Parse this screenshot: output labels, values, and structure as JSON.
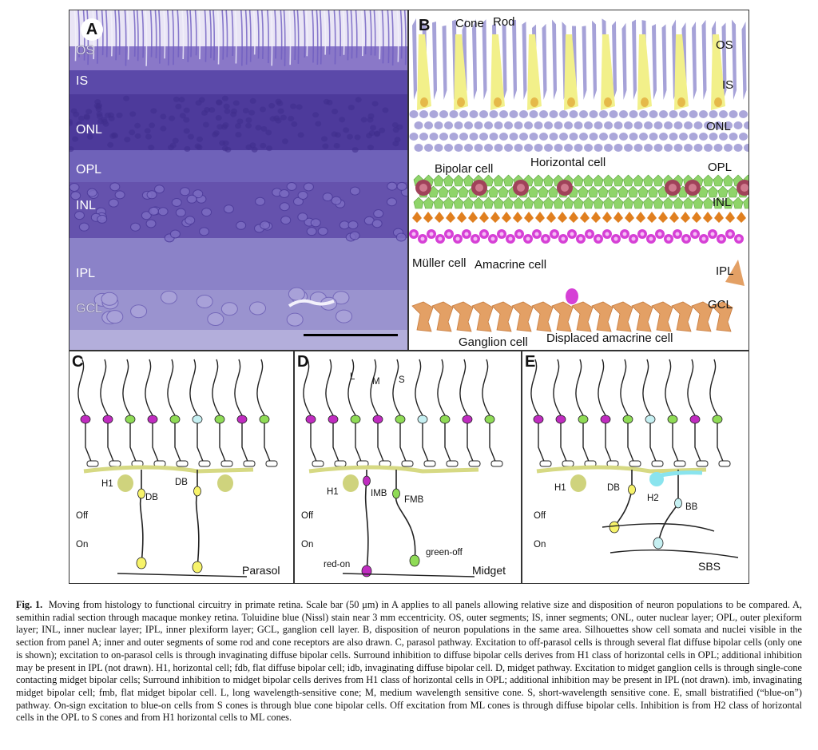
{
  "panels": {
    "a": {
      "letter": "A",
      "layers": [
        "OS",
        "IS",
        "ONL",
        "OPL",
        "INL",
        "IPL",
        "GCL"
      ]
    },
    "b": {
      "letter": "B",
      "layers": [
        "OS",
        "IS",
        "ONL",
        "OPL",
        "INL",
        "IPL",
        "GCL"
      ],
      "cells": {
        "cone": "Cone",
        "rod": "Rod",
        "bipolar": "Bipolar cell",
        "horizontal": "Horizontal cell",
        "muller": "Müller cell",
        "amacrine": "Amacrine cell",
        "ganglion": "Ganglion cell",
        "displaced": "Displaced amacrine cell"
      },
      "colors": {
        "rod": "#9c98d4",
        "cone": "#f2f08a",
        "bipolar": "#8fd46a",
        "horizontal": "#a0425a",
        "amacrine": "#d640d6",
        "muller": "#e07f1f",
        "ganglion": "#e3a065"
      }
    },
    "c": {
      "letter": "C",
      "h1": "H1",
      "db_left": "DB",
      "db_right": "DB",
      "off": "Off",
      "on": "On",
      "pathway": "Parasol"
    },
    "d": {
      "letter": "D",
      "l": "L",
      "m": "M",
      "s": "S",
      "h1": "H1",
      "imb": "IMB",
      "fmb": "FMB",
      "off": "Off",
      "on": "On",
      "red_on": "red-on",
      "green_off": "green-off",
      "pathway": "Midget"
    },
    "e": {
      "letter": "E",
      "h1": "H1",
      "db": "DB",
      "h2": "H2",
      "bb": "BB",
      "off": "Off",
      "on": "On",
      "pathway": "SBS"
    }
  },
  "caption": {
    "label": "Fig. 1.",
    "text": "Moving from histology to functional circuitry in primate retina. Scale bar (50 μm) in A applies to all panels allowing relative size and disposition of neuron populations to be compared. A, semithin radial section through macaque monkey retina. Toluidine blue (Nissl) stain near 3 mm eccentricity. OS, outer segments; IS, inner segments; ONL, outer nuclear layer; OPL, outer plexiform layer; INL, inner nuclear layer; IPL, inner plexiform layer; GCL, ganglion cell layer. B, disposition of neuron populations in the same area. Silhouettes show cell somata and nuclei visible in the section from panel A; inner and outer segments of some rod and cone receptors are also drawn. C, parasol pathway. Excitation to off-parasol cells is through several flat diffuse bipolar cells (only one is shown); excitation to on-parasol cells is through invaginating diffuse bipolar cells. Surround inhibition to diffuse bipolar cells derives from H1 class of horizontal cells in OPL; additional inhibition may be present in IPL (not drawn). H1, horizontal cell; fdb, flat diffuse bipolar cell; idb, invaginating diffuse bipolar cell. D, midget pathway. Excitation to midget ganglion cells is through single-cone contacting midget bipolar cells; Surround inhibition to midget bipolar cells derives from H1 class of horizontal cells in OPL; additional inhibition may be present in IPL (not drawn). imb, invaginating midget bipolar cell; fmb, flat midget bipolar cell. L, long wavelength-sensitive cone; M, medium wavelength sensitive cone. S, short-wavelength sensitive cone. E, small bistratified (“blue-on”) pathway. On-sign excitation to blue-on cells from S cones is through blue cone bipolar cells. Off excitation from ML cones is through diffuse bipolar cells. Inhibition is from H2 class of horizontal cells in the OPL to S cones and from H1 horizontal cells to ML cones."
  }
}
